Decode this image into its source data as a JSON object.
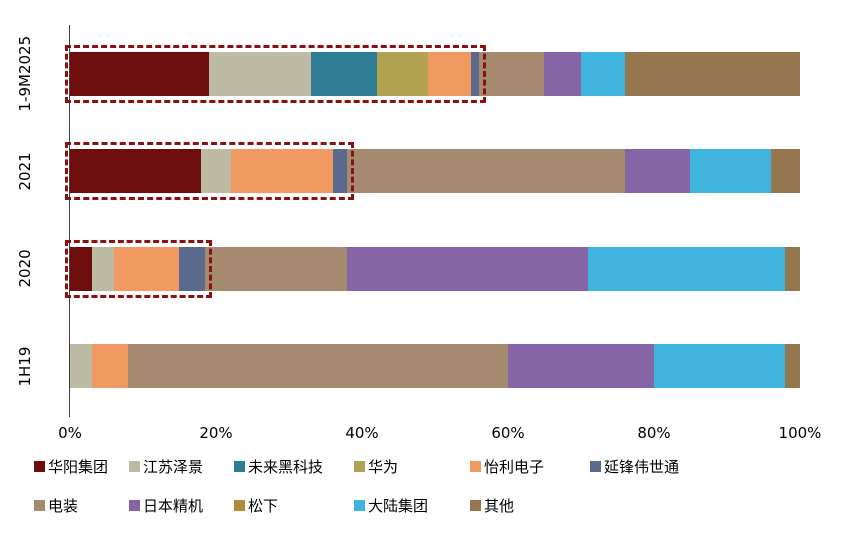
{
  "chart_data": {
    "type": "bar",
    "orientation": "horizontal",
    "stacked": true,
    "grid": false,
    "legend_position": "bottom",
    "categories": [
      "1-9M2025",
      "2021",
      "2020",
      "1H19"
    ],
    "series": [
      {
        "name": "华阳集团",
        "color": "#6E0E0C",
        "values": [
          19,
          18,
          3,
          0
        ]
      },
      {
        "name": "江苏泽景",
        "color": "#BDBBA4",
        "values": [
          14,
          4,
          3,
          3
        ]
      },
      {
        "name": "未来黑科技",
        "color": "#2F7E95",
        "values": [
          9,
          0,
          0,
          0
        ]
      },
      {
        "name": "华为",
        "color": "#B2A254",
        "values": [
          7,
          0,
          0,
          0
        ]
      },
      {
        "name": "怡利电子",
        "color": "#F09A61",
        "values": [
          6,
          14,
          9,
          5
        ]
      },
      {
        "name": "延锋伟世通",
        "color": "#5A6A8C",
        "values": [
          1,
          2,
          3.5,
          0
        ]
      },
      {
        "name": "电装",
        "color": "#A58A6F",
        "values": [
          9,
          38,
          19.5,
          52
        ]
      },
      {
        "name": "日本精机",
        "color": "#8565A5",
        "values": [
          5,
          9,
          33,
          20
        ]
      },
      {
        "name": "松下",
        "color": "#B38A3D",
        "values": [
          0,
          0,
          0,
          0
        ]
      },
      {
        "name": "大陆集团",
        "color": "#3FB4DF",
        "values": [
          6,
          11,
          27,
          18
        ]
      },
      {
        "name": "其他",
        "color": "#96764F",
        "values": [
          24,
          4,
          2,
          2
        ]
      }
    ],
    "x_ticks": [
      "0%",
      "20%",
      "40%",
      "60%",
      "80%",
      "100%"
    ],
    "xlim": [
      0,
      100
    ],
    "annotations": [
      {
        "row": 0,
        "from": 0,
        "to": 56,
        "style": "dashed-red-box"
      },
      {
        "row": 1,
        "from": 0,
        "to": 38,
        "style": "dashed-red-box"
      },
      {
        "row": 2,
        "from": 0,
        "to": 18.5,
        "style": "dashed-red-box"
      }
    ]
  }
}
